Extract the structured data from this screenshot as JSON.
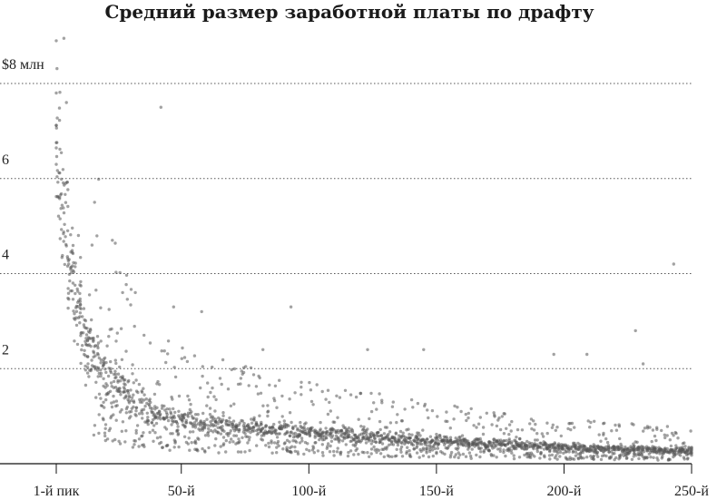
{
  "chart_data": {
    "type": "scatter",
    "title": "Средний размер заработной платы по драфту",
    "xlabel": "",
    "ylabel": "",
    "xlim": [
      0,
      251
    ],
    "ylim": [
      0,
      8.3
    ],
    "grid": "horizontal dotted",
    "legend": "none",
    "point_color": "#555555",
    "y_ticks": [
      {
        "value": 8,
        "label": "$8 млн"
      },
      {
        "value": 6,
        "label": "6"
      },
      {
        "value": 4,
        "label": "4"
      },
      {
        "value": 2,
        "label": "2"
      }
    ],
    "x_ticks": [
      {
        "value": 1,
        "label": "1-й пик"
      },
      {
        "value": 50,
        "label": "50-й"
      },
      {
        "value": 100,
        "label": "100-й"
      },
      {
        "value": 150,
        "label": "150-й"
      },
      {
        "value": 200,
        "label": "200-й"
      },
      {
        "value": 250,
        "label": "250-й"
      }
    ],
    "trend": {
      "description": "points per pick cluster around a decaying central value",
      "central_values": [
        {
          "pick": 1,
          "y": 6.8
        },
        {
          "pick": 3,
          "y": 5.9
        },
        {
          "pick": 5,
          "y": 4.8
        },
        {
          "pick": 8,
          "y": 3.6
        },
        {
          "pick": 12,
          "y": 2.7
        },
        {
          "pick": 20,
          "y": 2.0
        },
        {
          "pick": 30,
          "y": 1.4
        },
        {
          "pick": 40,
          "y": 1.05
        },
        {
          "pick": 60,
          "y": 0.85
        },
        {
          "pick": 80,
          "y": 0.75
        },
        {
          "pick": 100,
          "y": 0.65
        },
        {
          "pick": 130,
          "y": 0.55
        },
        {
          "pick": 160,
          "y": 0.45
        },
        {
          "pick": 200,
          "y": 0.35
        },
        {
          "pick": 250,
          "y": 0.28
        }
      ]
    },
    "outliers": [
      {
        "x": 1,
        "y": 8.9
      },
      {
        "x": 4,
        "y": 8.95
      },
      {
        "x": 1,
        "y": 7.8
      },
      {
        "x": 5,
        "y": 7.6
      },
      {
        "x": 42,
        "y": 7.5
      },
      {
        "x": 16,
        "y": 5.5
      },
      {
        "x": 23,
        "y": 4.7
      },
      {
        "x": 15,
        "y": 4.6
      },
      {
        "x": 27,
        "y": 3.6
      },
      {
        "x": 32,
        "y": 3.6
      },
      {
        "x": 47,
        "y": 3.3
      },
      {
        "x": 58,
        "y": 3.2
      },
      {
        "x": 93,
        "y": 3.3
      },
      {
        "x": 243,
        "y": 4.2
      },
      {
        "x": 228,
        "y": 2.8
      },
      {
        "x": 145,
        "y": 2.4
      },
      {
        "x": 123,
        "y": 2.4
      },
      {
        "x": 196,
        "y": 2.3
      },
      {
        "x": 209,
        "y": 2.3
      },
      {
        "x": 231,
        "y": 2.1
      },
      {
        "x": 82,
        "y": 2.4
      }
    ]
  }
}
